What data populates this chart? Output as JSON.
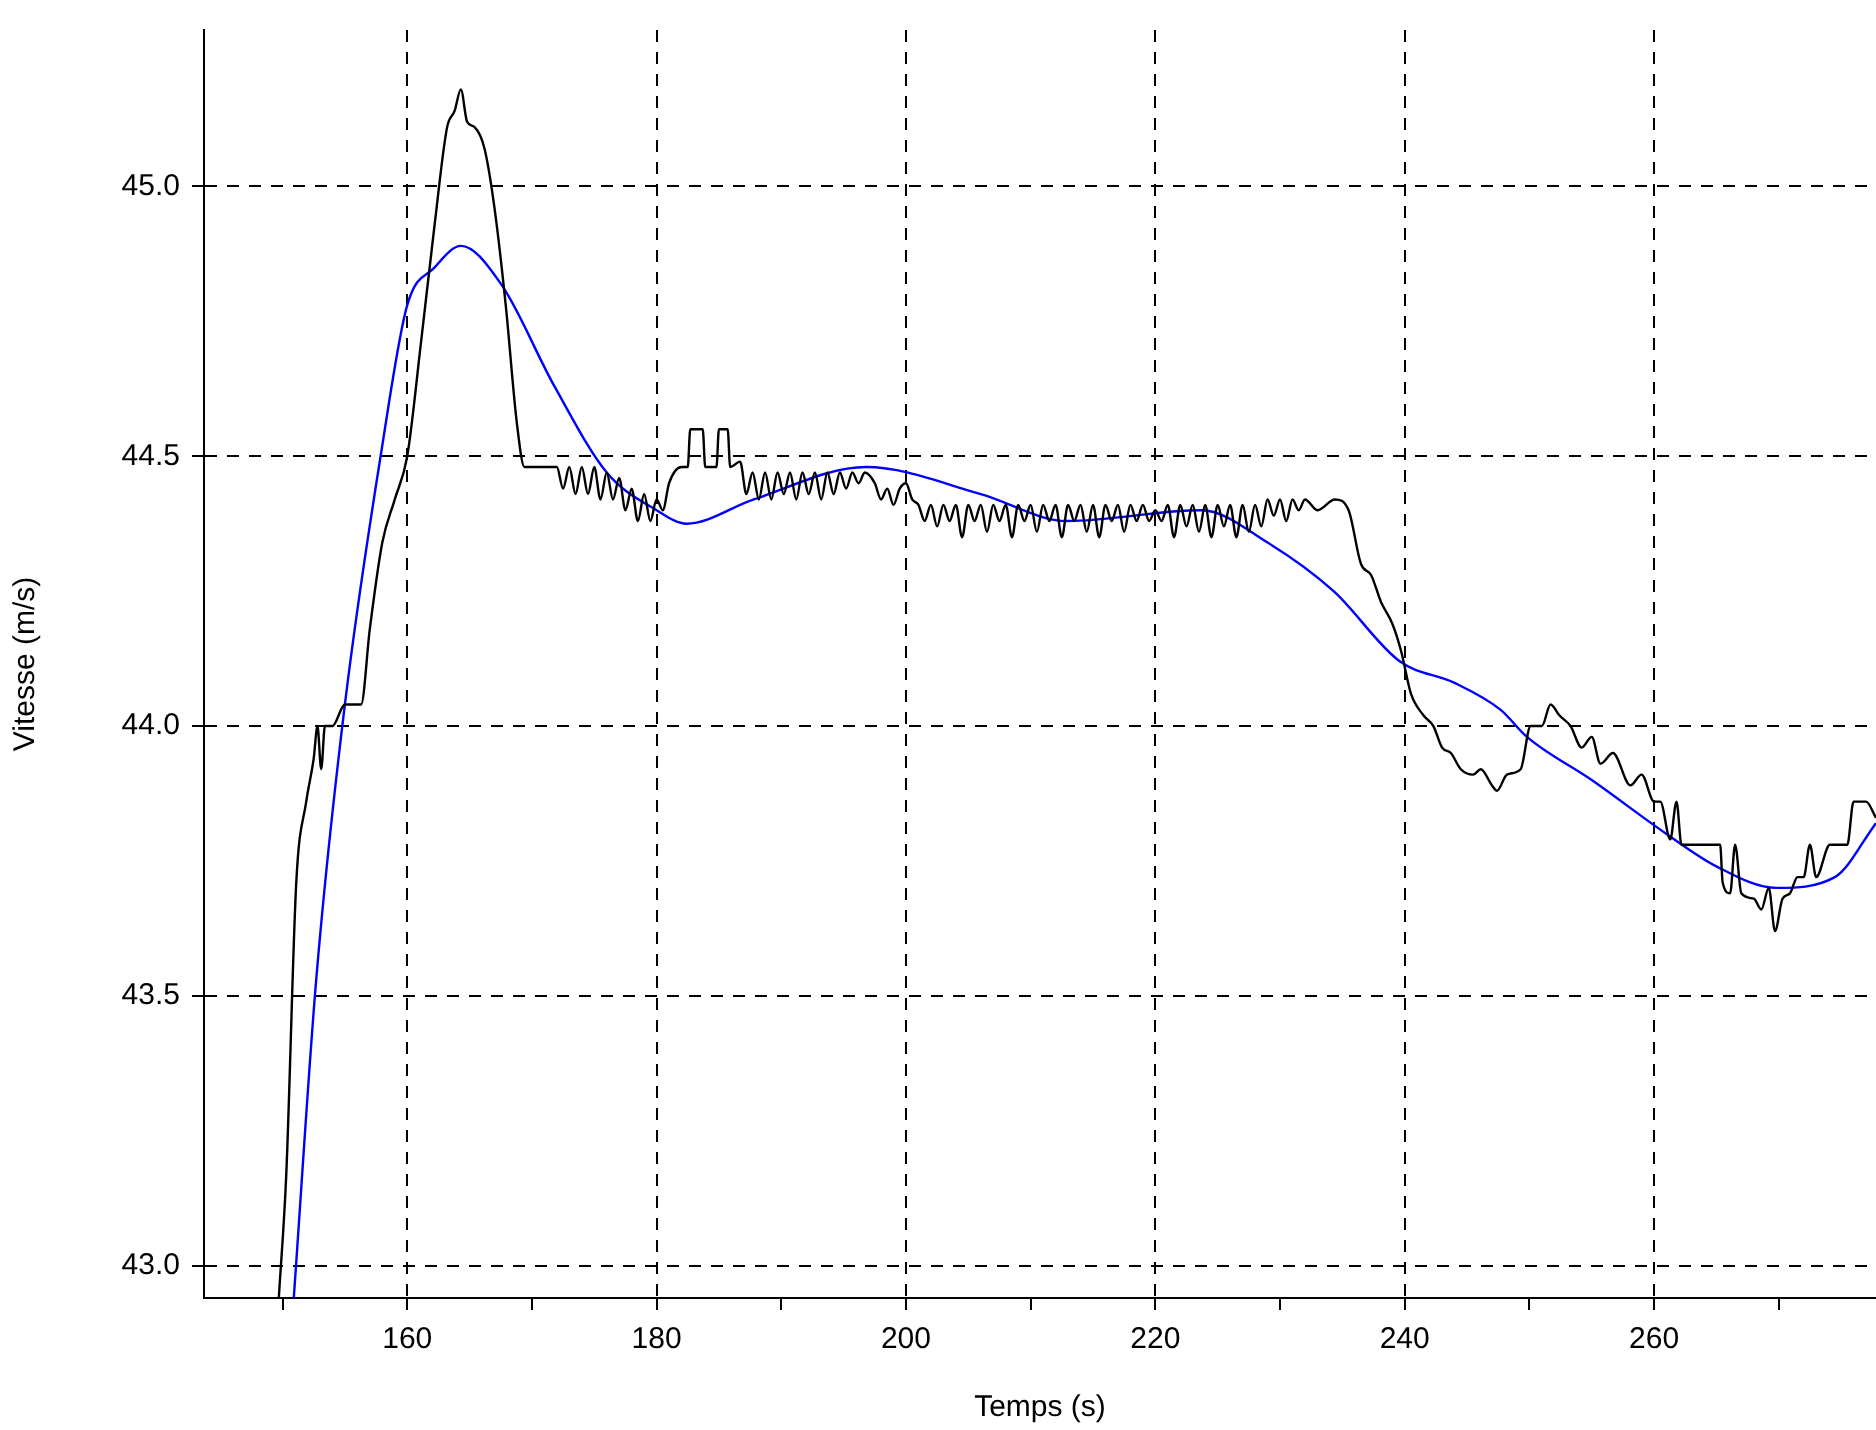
{
  "chart_data": {
    "type": "line",
    "xlabel": "Temps (s)",
    "ylabel": "Vitesse (m/s)",
    "xlim": [
      143.7,
      277.8
    ],
    "ylim": [
      42.94,
      45.29
    ],
    "xticks": [
      {
        "value": 150,
        "label": null
      },
      160,
      {
        "value": 170,
        "label": null
      },
      180,
      {
        "value": 190,
        "label": null
      },
      200,
      {
        "value": 210,
        "label": null
      },
      220,
      {
        "value": 230,
        "label": null
      },
      240,
      {
        "value": 250,
        "label": null
      },
      260,
      {
        "value": 270,
        "label": null
      }
    ],
    "yticks": [
      {
        "value": 43,
        "label": "43.0"
      },
      43.5,
      {
        "value": 44,
        "label": "44.0"
      },
      44.5,
      {
        "value": 45,
        "label": "45.0"
      }
    ],
    "grid": true,
    "legend": false,
    "marker": "none",
    "line_style": "solid",
    "series": [
      {
        "color": "#000000",
        "x": [
          149.7,
          150.3,
          151.1,
          151.9,
          152.5,
          152.8,
          153.1,
          153.4,
          154.0,
          155.0,
          156.3,
          157.0,
          158.0,
          159.0,
          160.0,
          161.1,
          162.2,
          163.2,
          163.8,
          164.3,
          164.8,
          165.4,
          166.2,
          167.0,
          167.9,
          168.8,
          169.4,
          172.0,
          172.5,
          173.0,
          173.5,
          174.0,
          174.5,
          175.0,
          175.5,
          176.0,
          176.5,
          177.0,
          177.5,
          178.0,
          178.5,
          179.0,
          179.5,
          180.0,
          180.5,
          181.0,
          182.0,
          182.5,
          182.7,
          183.7,
          183.9,
          184.8,
          185.0,
          185.7,
          185.9,
          186.7,
          187.2,
          187.7,
          188.2,
          188.7,
          189.2,
          189.7,
          190.2,
          190.7,
          191.2,
          191.7,
          192.2,
          192.7,
          193.2,
          193.7,
          194.2,
          194.7,
          195.2,
          195.7,
          196.2,
          196.7,
          197.5,
          198.0,
          198.5,
          199.0,
          199.5,
          200.0,
          200.5,
          201.0,
          201.5,
          202.0,
          202.5,
          203.0,
          203.5,
          204.0,
          204.5,
          205.0,
          205.5,
          206.0,
          206.5,
          207.0,
          207.5,
          208.0,
          208.5,
          209.0,
          209.5,
          210.0,
          210.5,
          211.0,
          211.5,
          212.0,
          212.5,
          213.0,
          213.5,
          214.0,
          214.5,
          215.0,
          215.5,
          216.0,
          216.5,
          217.0,
          217.5,
          218.0,
          218.5,
          219.0,
          219.5,
          220.0,
          220.5,
          221.0,
          221.5,
          222.0,
          222.5,
          223.0,
          223.5,
          224.0,
          224.5,
          225.0,
          225.5,
          226.0,
          226.5,
          227.0,
          227.5,
          228.0,
          228.5,
          229.0,
          229.5,
          230.0,
          230.5,
          231.0,
          231.5,
          232.0,
          233.0,
          234.4,
          235.5,
          236.5,
          237.3,
          238.1,
          239.0,
          239.7,
          240.5,
          241.5,
          242.3,
          243.0,
          243.7,
          244.5,
          245.5,
          246.1,
          247.0,
          247.4,
          248.2,
          249.3,
          250.1,
          251.0,
          251.7,
          252.4,
          253.3,
          254.2,
          255.0,
          255.7,
          256.7,
          258.1,
          259.0,
          260.0,
          260.5,
          261.3,
          261.8,
          262.2,
          265.3,
          265.5,
          266.1,
          266.5,
          267.0,
          268.0,
          268.6,
          269.2,
          269.7,
          270.3,
          270.9,
          271.5,
          272.0,
          272.5,
          273.0,
          274.1,
          275.5,
          276.0,
          277.0,
          277.8
        ],
        "values": [
          42.94,
          43.17,
          43.71,
          43.86,
          43.94,
          44.0,
          43.92,
          44.0,
          44.0,
          44.04,
          44.04,
          44.18,
          44.34,
          44.42,
          44.5,
          44.71,
          44.93,
          45.11,
          45.14,
          45.18,
          45.12,
          45.11,
          45.07,
          44.96,
          44.78,
          44.56,
          44.48,
          44.48,
          44.44,
          44.48,
          44.43,
          44.48,
          44.43,
          44.48,
          44.42,
          44.47,
          44.42,
          44.46,
          44.4,
          44.44,
          44.38,
          44.43,
          44.38,
          44.42,
          44.4,
          44.45,
          44.48,
          44.48,
          44.55,
          44.55,
          44.48,
          44.48,
          44.55,
          44.55,
          44.48,
          44.49,
          44.43,
          44.47,
          44.42,
          44.47,
          44.42,
          44.47,
          44.43,
          44.47,
          44.42,
          44.47,
          44.43,
          44.47,
          44.42,
          44.47,
          44.43,
          44.47,
          44.44,
          44.47,
          44.45,
          44.47,
          44.45,
          44.42,
          44.44,
          44.41,
          44.44,
          44.45,
          44.42,
          44.41,
          44.38,
          44.41,
          44.37,
          44.41,
          44.38,
          44.41,
          44.35,
          44.41,
          44.38,
          44.41,
          44.36,
          44.41,
          44.38,
          44.41,
          44.35,
          44.41,
          44.38,
          44.41,
          44.36,
          44.41,
          44.38,
          44.41,
          44.35,
          44.41,
          44.38,
          44.41,
          44.36,
          44.41,
          44.35,
          44.41,
          44.38,
          44.41,
          44.36,
          44.41,
          44.38,
          44.41,
          44.38,
          44.4,
          44.38,
          44.41,
          44.35,
          44.41,
          44.37,
          44.41,
          44.36,
          44.41,
          44.35,
          44.41,
          44.37,
          44.41,
          44.35,
          44.41,
          44.36,
          44.41,
          44.37,
          44.42,
          44.39,
          44.42,
          44.38,
          44.42,
          44.4,
          44.42,
          44.4,
          44.42,
          44.4,
          44.3,
          44.28,
          44.23,
          44.19,
          44.14,
          44.06,
          44.02,
          44.0,
          43.96,
          43.95,
          43.92,
          43.91,
          43.92,
          43.89,
          43.88,
          43.91,
          43.92,
          44.0,
          44.0,
          44.04,
          44.02,
          44.0,
          43.96,
          43.98,
          43.93,
          43.95,
          43.89,
          43.91,
          43.86,
          43.86,
          43.79,
          43.86,
          43.78,
          43.78,
          43.71,
          43.69,
          43.78,
          43.69,
          43.68,
          43.66,
          43.7,
          43.62,
          43.68,
          43.69,
          43.72,
          43.72,
          43.78,
          43.72,
          43.78,
          43.78,
          43.86,
          43.86,
          43.83
        ]
      },
      {
        "color": "#0000ff",
        "x": [
          150.9,
          152.7,
          155.0,
          158.0,
          160.0,
          162.2,
          164.3,
          167.5,
          171.8,
          176.0,
          180.0,
          182.4,
          187.8,
          196.8,
          206.0,
          212.9,
          223.7,
          229.0,
          234.3,
          239.6,
          244.0,
          247.7,
          249.8,
          255.0,
          261.0,
          265.0,
          269.8,
          274.5,
          277.8
        ],
        "values": [
          42.94,
          43.53,
          44.04,
          44.52,
          44.78,
          44.85,
          44.89,
          44.82,
          44.63,
          44.47,
          44.4,
          44.375,
          44.42,
          44.48,
          44.43,
          44.38,
          44.4,
          44.34,
          44.25,
          44.12,
          44.08,
          44.03,
          43.98,
          43.9,
          43.8,
          43.74,
          43.7,
          43.72,
          43.82
        ]
      }
    ]
  }
}
